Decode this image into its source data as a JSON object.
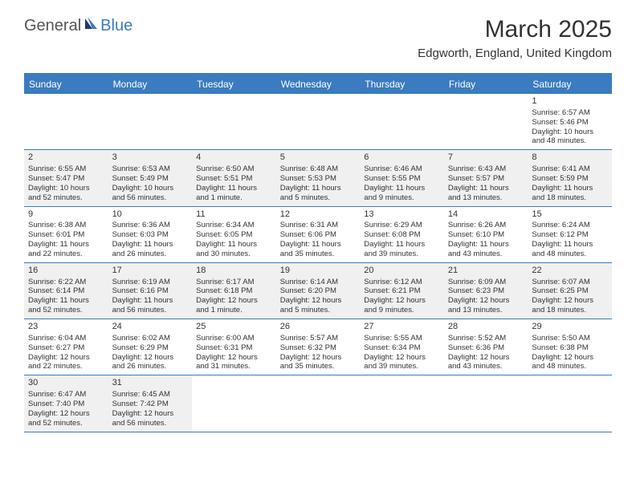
{
  "logo": {
    "general": "General",
    "blue": "Blue"
  },
  "title": "March 2025",
  "location": "Edgworth, England, United Kingdom",
  "colors": {
    "accent": "#3b7bbf",
    "shaded_bg": "#f0f0f0",
    "text": "#333333"
  },
  "day_headers": [
    "Sunday",
    "Monday",
    "Tuesday",
    "Wednesday",
    "Thursday",
    "Friday",
    "Saturday"
  ],
  "weeks": [
    [
      {
        "empty": true
      },
      {
        "empty": true
      },
      {
        "empty": true
      },
      {
        "empty": true
      },
      {
        "empty": true
      },
      {
        "empty": true
      },
      {
        "day": "1",
        "sunrise": "Sunrise: 6:57 AM",
        "sunset": "Sunset: 5:46 PM",
        "daylight1": "Daylight: 10 hours",
        "daylight2": "and 48 minutes."
      }
    ],
    [
      {
        "day": "2",
        "sunrise": "Sunrise: 6:55 AM",
        "sunset": "Sunset: 5:47 PM",
        "daylight1": "Daylight: 10 hours",
        "daylight2": "and 52 minutes.",
        "shaded": true
      },
      {
        "day": "3",
        "sunrise": "Sunrise: 6:53 AM",
        "sunset": "Sunset: 5:49 PM",
        "daylight1": "Daylight: 10 hours",
        "daylight2": "and 56 minutes.",
        "shaded": true
      },
      {
        "day": "4",
        "sunrise": "Sunrise: 6:50 AM",
        "sunset": "Sunset: 5:51 PM",
        "daylight1": "Daylight: 11 hours",
        "daylight2": "and 1 minute.",
        "shaded": true
      },
      {
        "day": "5",
        "sunrise": "Sunrise: 6:48 AM",
        "sunset": "Sunset: 5:53 PM",
        "daylight1": "Daylight: 11 hours",
        "daylight2": "and 5 minutes.",
        "shaded": true
      },
      {
        "day": "6",
        "sunrise": "Sunrise: 6:46 AM",
        "sunset": "Sunset: 5:55 PM",
        "daylight1": "Daylight: 11 hours",
        "daylight2": "and 9 minutes.",
        "shaded": true
      },
      {
        "day": "7",
        "sunrise": "Sunrise: 6:43 AM",
        "sunset": "Sunset: 5:57 PM",
        "daylight1": "Daylight: 11 hours",
        "daylight2": "and 13 minutes.",
        "shaded": true
      },
      {
        "day": "8",
        "sunrise": "Sunrise: 6:41 AM",
        "sunset": "Sunset: 5:59 PM",
        "daylight1": "Daylight: 11 hours",
        "daylight2": "and 18 minutes.",
        "shaded": true
      }
    ],
    [
      {
        "day": "9",
        "sunrise": "Sunrise: 6:38 AM",
        "sunset": "Sunset: 6:01 PM",
        "daylight1": "Daylight: 11 hours",
        "daylight2": "and 22 minutes."
      },
      {
        "day": "10",
        "sunrise": "Sunrise: 6:36 AM",
        "sunset": "Sunset: 6:03 PM",
        "daylight1": "Daylight: 11 hours",
        "daylight2": "and 26 minutes."
      },
      {
        "day": "11",
        "sunrise": "Sunrise: 6:34 AM",
        "sunset": "Sunset: 6:05 PM",
        "daylight1": "Daylight: 11 hours",
        "daylight2": "and 30 minutes."
      },
      {
        "day": "12",
        "sunrise": "Sunrise: 6:31 AM",
        "sunset": "Sunset: 6:06 PM",
        "daylight1": "Daylight: 11 hours",
        "daylight2": "and 35 minutes."
      },
      {
        "day": "13",
        "sunrise": "Sunrise: 6:29 AM",
        "sunset": "Sunset: 6:08 PM",
        "daylight1": "Daylight: 11 hours",
        "daylight2": "and 39 minutes."
      },
      {
        "day": "14",
        "sunrise": "Sunrise: 6:26 AM",
        "sunset": "Sunset: 6:10 PM",
        "daylight1": "Daylight: 11 hours",
        "daylight2": "and 43 minutes."
      },
      {
        "day": "15",
        "sunrise": "Sunrise: 6:24 AM",
        "sunset": "Sunset: 6:12 PM",
        "daylight1": "Daylight: 11 hours",
        "daylight2": "and 48 minutes."
      }
    ],
    [
      {
        "day": "16",
        "sunrise": "Sunrise: 6:22 AM",
        "sunset": "Sunset: 6:14 PM",
        "daylight1": "Daylight: 11 hours",
        "daylight2": "and 52 minutes.",
        "shaded": true
      },
      {
        "day": "17",
        "sunrise": "Sunrise: 6:19 AM",
        "sunset": "Sunset: 6:16 PM",
        "daylight1": "Daylight: 11 hours",
        "daylight2": "and 56 minutes.",
        "shaded": true
      },
      {
        "day": "18",
        "sunrise": "Sunrise: 6:17 AM",
        "sunset": "Sunset: 6:18 PM",
        "daylight1": "Daylight: 12 hours",
        "daylight2": "and 1 minute.",
        "shaded": true
      },
      {
        "day": "19",
        "sunrise": "Sunrise: 6:14 AM",
        "sunset": "Sunset: 6:20 PM",
        "daylight1": "Daylight: 12 hours",
        "daylight2": "and 5 minutes.",
        "shaded": true
      },
      {
        "day": "20",
        "sunrise": "Sunrise: 6:12 AM",
        "sunset": "Sunset: 6:21 PM",
        "daylight1": "Daylight: 12 hours",
        "daylight2": "and 9 minutes.",
        "shaded": true
      },
      {
        "day": "21",
        "sunrise": "Sunrise: 6:09 AM",
        "sunset": "Sunset: 6:23 PM",
        "daylight1": "Daylight: 12 hours",
        "daylight2": "and 13 minutes.",
        "shaded": true
      },
      {
        "day": "22",
        "sunrise": "Sunrise: 6:07 AM",
        "sunset": "Sunset: 6:25 PM",
        "daylight1": "Daylight: 12 hours",
        "daylight2": "and 18 minutes.",
        "shaded": true
      }
    ],
    [
      {
        "day": "23",
        "sunrise": "Sunrise: 6:04 AM",
        "sunset": "Sunset: 6:27 PM",
        "daylight1": "Daylight: 12 hours",
        "daylight2": "and 22 minutes."
      },
      {
        "day": "24",
        "sunrise": "Sunrise: 6:02 AM",
        "sunset": "Sunset: 6:29 PM",
        "daylight1": "Daylight: 12 hours",
        "daylight2": "and 26 minutes."
      },
      {
        "day": "25",
        "sunrise": "Sunrise: 6:00 AM",
        "sunset": "Sunset: 6:31 PM",
        "daylight1": "Daylight: 12 hours",
        "daylight2": "and 31 minutes."
      },
      {
        "day": "26",
        "sunrise": "Sunrise: 5:57 AM",
        "sunset": "Sunset: 6:32 PM",
        "daylight1": "Daylight: 12 hours",
        "daylight2": "and 35 minutes."
      },
      {
        "day": "27",
        "sunrise": "Sunrise: 5:55 AM",
        "sunset": "Sunset: 6:34 PM",
        "daylight1": "Daylight: 12 hours",
        "daylight2": "and 39 minutes."
      },
      {
        "day": "28",
        "sunrise": "Sunrise: 5:52 AM",
        "sunset": "Sunset: 6:36 PM",
        "daylight1": "Daylight: 12 hours",
        "daylight2": "and 43 minutes."
      },
      {
        "day": "29",
        "sunrise": "Sunrise: 5:50 AM",
        "sunset": "Sunset: 6:38 PM",
        "daylight1": "Daylight: 12 hours",
        "daylight2": "and 48 minutes."
      }
    ],
    [
      {
        "day": "30",
        "sunrise": "Sunrise: 6:47 AM",
        "sunset": "Sunset: 7:40 PM",
        "daylight1": "Daylight: 12 hours",
        "daylight2": "and 52 minutes.",
        "shaded": true
      },
      {
        "day": "31",
        "sunrise": "Sunrise: 6:45 AM",
        "sunset": "Sunset: 7:42 PM",
        "daylight1": "Daylight: 12 hours",
        "daylight2": "and 56 minutes.",
        "shaded": true
      },
      {
        "empty": true
      },
      {
        "empty": true
      },
      {
        "empty": true
      },
      {
        "empty": true
      },
      {
        "empty": true
      }
    ]
  ]
}
